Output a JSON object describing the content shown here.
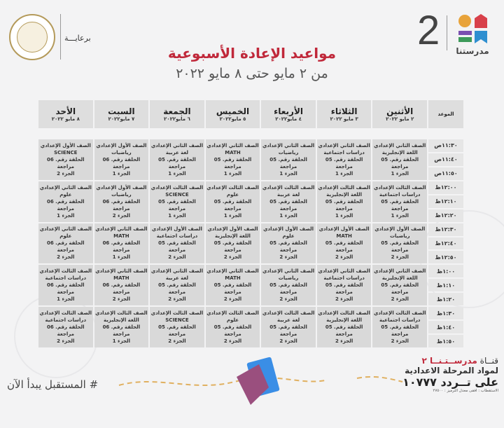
{
  "header": {
    "logo_number": "2",
    "logo_word": "مدرستنا",
    "sponsor": "برعايـــة",
    "title": "مواعيد الإعادة الأسبوعية",
    "subtitle": "من ٢ مايو حتى ٨ مايو ٢٠٢٢"
  },
  "colors": {
    "title": "#c0283a",
    "cell": "#d9d9d9"
  },
  "table": {
    "time_header": "الموعد",
    "days": [
      {
        "name": "الأثنين",
        "date": "٢ مايو ٢٠٢٢"
      },
      {
        "name": "الثلاثاء",
        "date": "٣ مايو ٢٠٢٢"
      },
      {
        "name": "الأربعاء",
        "date": "٤ مايو٢٠٢٢"
      },
      {
        "name": "الخميس",
        "date": "٥ مايو٢٠٢٢"
      },
      {
        "name": "الجمعة",
        "date": "٦ مايو٢٠٢٢"
      },
      {
        "name": "السبت",
        "date": "٧ مايو٢٠٢٢"
      },
      {
        "name": "الأحد",
        "date": "٨ مايو ٢٠٢٢"
      }
    ],
    "times": [
      "١١:٣٠ص",
      "١١:٤٠ص",
      "١١:٥٠ص",
      "١٢:٠٠ظ",
      "١٢:١٠ظ",
      "١٢:٢٠ظ",
      "١٢:٣٠ظ",
      "١٢:٤٠ظ",
      "١٢:٥٠ظ",
      "١:٠٠ظ",
      "١:١٠ظ",
      "١:٢٠ظ",
      "١:٣٠ظ",
      "١:٤٠ظ",
      "١:٥٠ظ"
    ],
    "blocks": [
      [
        [
          "الصف الثاني الإعدادي",
          "اللغة الإنجليزية",
          "الحلقة رقم. 05 مراجعة",
          "الجزء 1"
        ],
        [
          "الصف الثاني الإعدادي",
          "دراسات اجتماعية",
          "الحلقة رقم. 05 مراجعة",
          "الجزء 1"
        ],
        [
          "الصف الثاني الإعدادي",
          "رياضيات",
          "الحلقة رقم. 05 مراجعة",
          "الجزء 1"
        ],
        [
          "الصف الثاني الإعدادي",
          "MATH",
          "الحلقة رقم. 05 مراجعة",
          "الجزء 1"
        ],
        [
          "الصف الثاني الإعدادي",
          "لغة عربية",
          "الحلقة رقم. 05 مراجعة",
          "الجزء 1"
        ],
        [
          "الصف الأول الإعدادي",
          "رياضيات",
          "الحلقة رقم. 06 مراجعة",
          "الجزء 1"
        ],
        [
          "الصف الأول الإعدادي",
          "SCIENCE",
          "الحلقة رقم. 06 مراجعة",
          "الجزء 2"
        ]
      ],
      [
        [
          "الصف الثالث الإعدادي",
          "دراسات اجتماعية",
          "الحلقة رقم. 05 مراجعة",
          "الجزء 1"
        ],
        [
          "الصف الثالث الإعدادي",
          "اللغة الإنجليزية",
          "الحلقة رقم. 05 مراجعة",
          "الجزء 1"
        ],
        [
          "الصف الثالث الإعدادي",
          "لغة عربية",
          "الحلقة رقم. 05 مراجعة",
          "الجزء 1"
        ],
        [
          "الصف الثالث الإعدادي",
          "علوم",
          "الحلقة رقم. 05 مراجعة",
          "الجزء 1"
        ],
        [
          "الصف الثالث الإعدادي",
          "SCIENCE",
          "الحلقة رقم. 05 مراجعة",
          "الجزء 1"
        ],
        [
          "الصف الأول الإعدادي",
          "رياضيات",
          "الحلقة رقم. 06 مراجعة",
          "الجزء 2"
        ],
        [
          "الصف الثاني الإعدادي",
          "علوم",
          "الحلقة رقم. 06 مراجعة",
          "الجزء 1"
        ]
      ],
      [
        [
          "الصف الأول الإعدادي",
          "رياضيات",
          "الحلقة رقم. 05 مراجعة",
          "الجزء 2"
        ],
        [
          "الصف الأول الإعدادي",
          "MATH",
          "الحلقة رقم. 05 مراجعة",
          "الجزء 2"
        ],
        [
          "الصف الأول الإعدادي",
          "علوم",
          "الحلقة رقم. 05 مراجعة",
          "الجزء 2"
        ],
        [
          "الصف الأول الإعدادي",
          "اللغة الإنجليزية",
          "الحلقة رقم. 05 مراجعة",
          "الجزء 2"
        ],
        [
          "الصف الأول الإعدادي",
          "دراسات اجتماعية",
          "الحلقة رقم. 05 مراجعة",
          "الجزء 2"
        ],
        [
          "الصف الثاني الإعدادي",
          "MATH",
          "الحلقة رقم. 06 مراجعة",
          "الجزء 1"
        ],
        [
          "الصف الثاني الإعدادي",
          "علوم",
          "الحلقة رقم. 06 مراجعة",
          "الجزء 2"
        ]
      ],
      [
        [
          "الصف الثاني الإعدادي",
          "اللغة الإنجليزية",
          "الحلقة رقم. 05 مراجعة",
          "الجزء 2"
        ],
        [
          "الصف الثاني الإعدادي",
          "دراسات اجتماعية",
          "الحلقة رقم. 05 مراجعة",
          "الجزء 2"
        ],
        [
          "الصف الثاني الإعدادي",
          "رياضيات",
          "الحلقة رقم. 05 مراجعة",
          "الجزء 2"
        ],
        [
          "الصف الثاني الإعدادي",
          "MATH",
          "الحلقة رقم. 05 مراجعة",
          "الجزء 2"
        ],
        [
          "الصف الثاني الإعدادي",
          "لغة عربية",
          "الحلقة رقم. 05 مراجعة",
          "الجزء 2"
        ],
        [
          "الصف الثاني الإعدادي",
          "MATH",
          "الحلقة رقم. 06 مراجعة",
          "الجزء 2"
        ],
        [
          "الصف الثالث الإعدادي",
          "دراسات اجتماعية",
          "الحلقة رقم. 06 مراجعة",
          "الجزء 1"
        ]
      ],
      [
        [
          "الصف الثالث الإعدادي",
          "دراسات اجتماعية",
          "الحلقة رقم. 05 مراجعة",
          "الجزء 2"
        ],
        [
          "الصف الثالث الإعدادي",
          "اللغة الإنجليزية",
          "الحلقة رقم. 05 مراجعة",
          "الجزء 2"
        ],
        [
          "الصف الثالث الإعدادي",
          "لغة عربية",
          "الحلقة رقم. 05 مراجعة",
          "الجزء 2"
        ],
        [
          "الصف الثالث الإعدادي",
          "علوم",
          "الحلقة رقم. 05 مراجعة",
          "الجزء 2"
        ],
        [
          "الصف الثالث الإعدادي",
          "SCIENCE",
          "الحلقة رقم. 05 مراجعة",
          "الجزء 2"
        ],
        [
          "الصف الثالث الإعدادي",
          "اللغة الإنجليزية",
          "الحلقة رقم. 06 مراجعة",
          "الجزء 1"
        ],
        [
          "الصف الثالث الإعدادي",
          "دراسات اجتماعية",
          "الحلقة رقم. 06 مراجعة",
          "الجزء 2"
        ]
      ]
    ]
  },
  "footer": {
    "channel": "قنــاة",
    "channel_name": "مدرســتـنــا ٢",
    "line2": "لمواد المرحلة الاعدادية",
    "line3": "على تــردد ١٠٧٧٧",
    "line4": "الاستقطاب : افقى معدل الترميز : ٢٧٥٠٠",
    "hashtag": "# المستقبل يبدأ الآن"
  }
}
